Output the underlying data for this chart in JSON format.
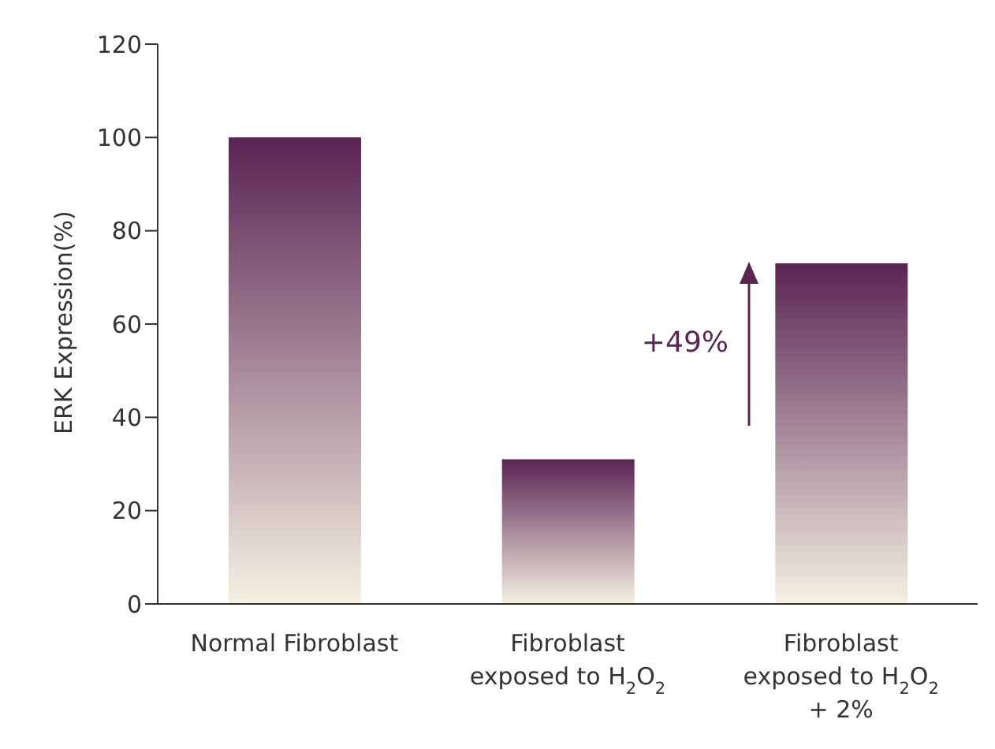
{
  "chart_data": {
    "type": "bar",
    "ylabel": "ERK Expression(%)",
    "categories": [
      "Normal Fibroblast",
      "Fibroblast\nexposed to H$_{2}$O$_{2}$",
      "Fibroblast\nexposed to H$_{2}$O$_{2}$\n+ 2%"
    ],
    "values": [
      100,
      31,
      73
    ],
    "color": "#5a2453",
    "ylim": [
      0,
      120
    ],
    "yticks": [
      0,
      20,
      40,
      60,
      80,
      100,
      120
    ],
    "grid": false,
    "annotations": [
      "+49%"
    ]
  }
}
